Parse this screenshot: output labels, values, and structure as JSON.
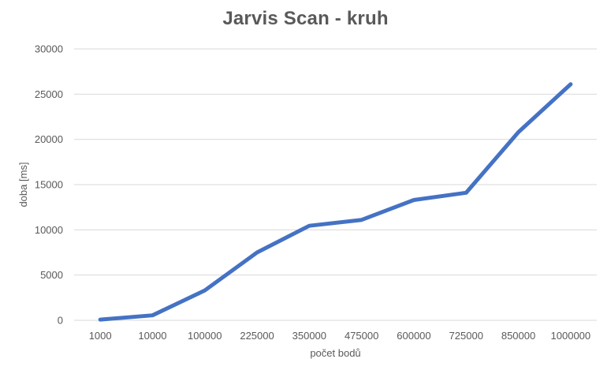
{
  "chart_data": {
    "type": "line",
    "title": "Jarvis Scan - kruh",
    "xlabel": "počet bodů",
    "ylabel": "doba [ms]",
    "categories": [
      "1000",
      "10000",
      "100000",
      "225000",
      "350000",
      "475000",
      "600000",
      "725000",
      "850000",
      "1000000"
    ],
    "series": [
      {
        "values": [
          80,
          550,
          3300,
          7500,
          10450,
          11100,
          13300,
          14100,
          20800,
          26100
        ],
        "color": "#4472C4"
      }
    ],
    "ylim": [
      0,
      30000
    ],
    "yticks": [
      0,
      5000,
      10000,
      15000,
      20000,
      25000,
      30000
    ],
    "grid": "horizontal",
    "legend": "none"
  }
}
